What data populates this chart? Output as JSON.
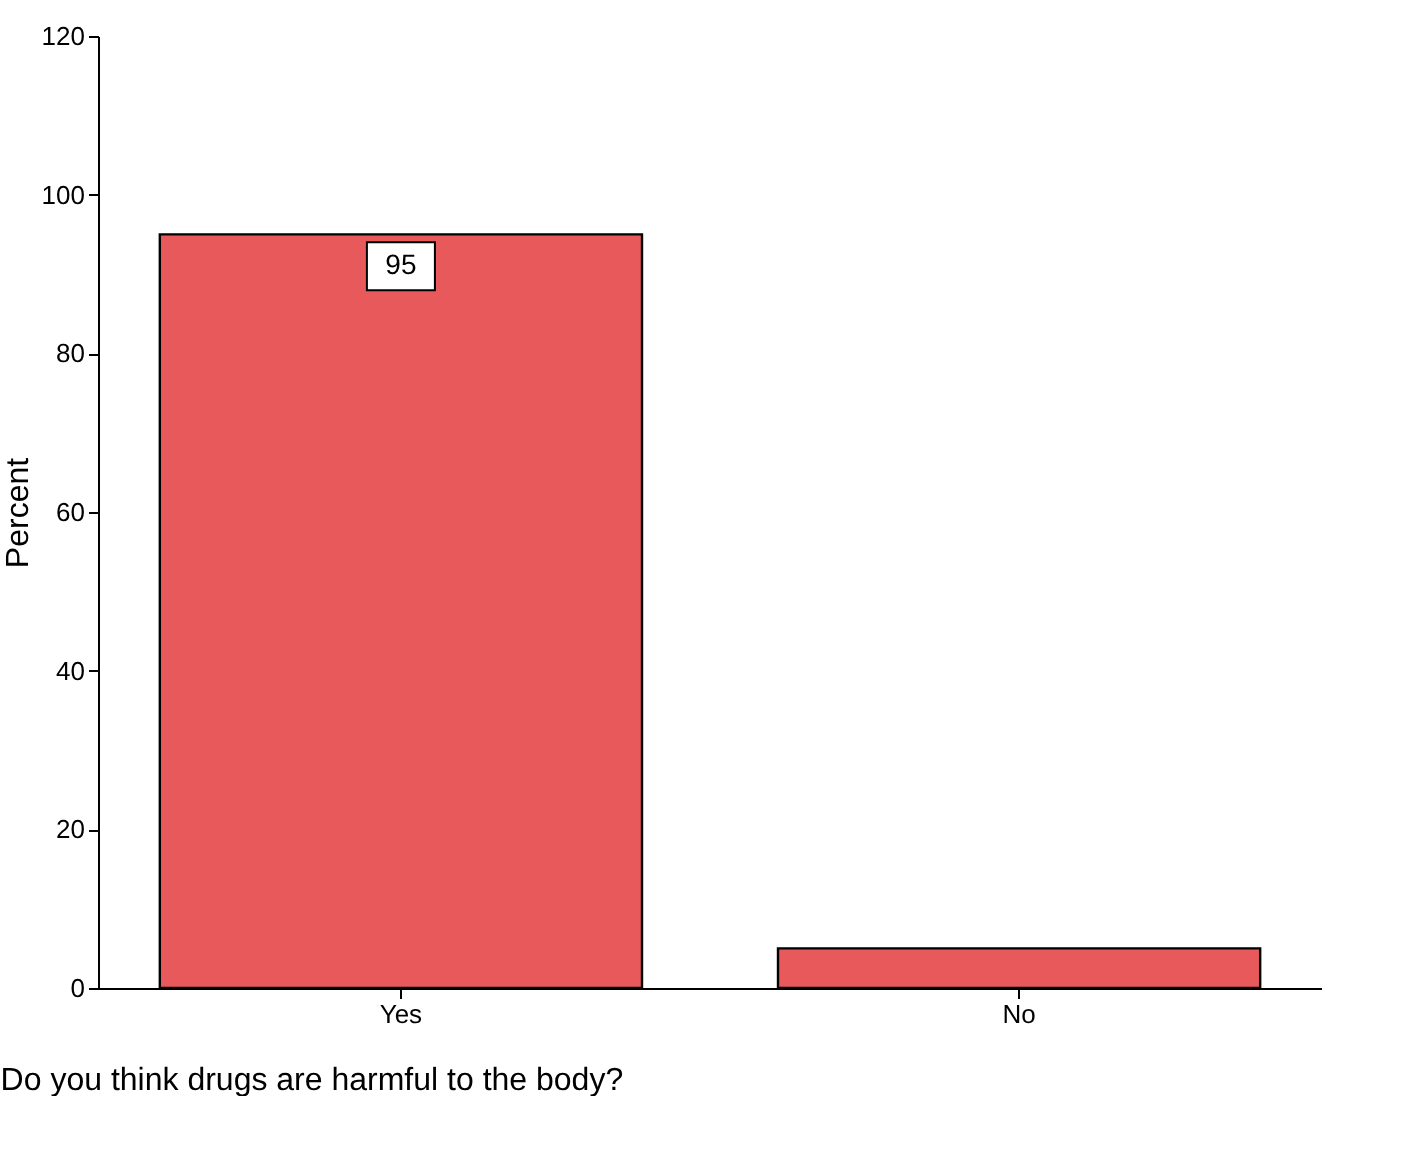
{
  "chart_data": {
    "type": "bar",
    "xlabel": "Do you think drugs are harmful to the body?",
    "ylabel": "Percent",
    "categories": [
      "Yes",
      "No"
    ],
    "values": [
      95,
      5
    ],
    "color": "#e8595b",
    "value_labels": [
      "95",
      null
    ],
    "ylim": [
      0,
      120
    ],
    "yticks": [
      0,
      20,
      40,
      60,
      80,
      100,
      120
    ],
    "grid": false
  }
}
